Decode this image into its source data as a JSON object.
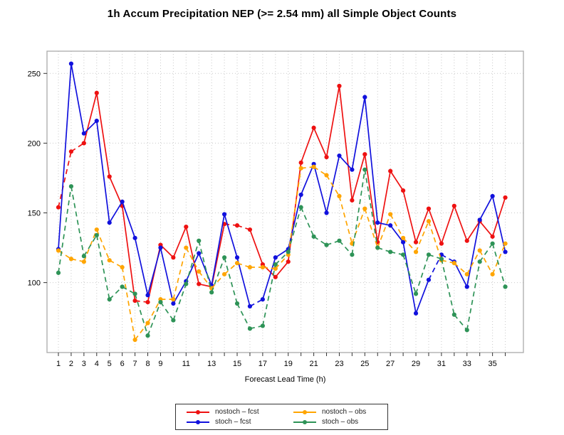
{
  "title": "1h Accum Precipitation NEP (>= 2.54 mm) all Simple Object Counts",
  "chart_data": {
    "type": "line",
    "title": "1h Accum Precipitation NEP (>= 2.54 mm) all Simple Object Counts",
    "xlabel": "Forecast Lead Time (h)",
    "ylabel": "",
    "x": [
      1,
      2,
      3,
      4,
      5,
      6,
      7,
      8,
      9,
      10,
      11,
      12,
      13,
      14,
      15,
      16,
      17,
      18,
      19,
      20,
      21,
      22,
      23,
      24,
      25,
      26,
      27,
      28,
      29,
      30,
      31,
      32,
      33,
      34,
      35,
      36
    ],
    "x_labeled_ticks": [
      1,
      2,
      3,
      4,
      5,
      6,
      7,
      8,
      9,
      11,
      13,
      15,
      17,
      19,
      21,
      23,
      25,
      27,
      29,
      31,
      33,
      35
    ],
    "y_ticks": [
      100,
      150,
      200,
      250
    ],
    "ylim": [
      50,
      266
    ],
    "xlim": [
      0.1,
      37.4
    ],
    "grid": "dotted, both axes, every hour and every 50 units",
    "legend_position": "bottom-center",
    "series": [
      {
        "name": "nostoch – fcst",
        "color": "#EE1111",
        "style": "solid",
        "dashed_segments": [
          [
            1,
            3
          ],
          [
            7,
            8
          ],
          [
            14,
            16
          ]
        ],
        "values": [
          154,
          194,
          200,
          236,
          176,
          155,
          87,
          86,
          127,
          118,
          140,
          99,
          97,
          142,
          141,
          138,
          113,
          104,
          115,
          186,
          211,
          190,
          241,
          159,
          192,
          129,
          180,
          166,
          129,
          153,
          128,
          155,
          130,
          144,
          133,
          161
        ]
      },
      {
        "name": "stoch – fcst",
        "color": "#1111DD",
        "style": "solid",
        "dashed_segments": [
          [
            16,
            17
          ],
          [
            30,
            32
          ]
        ],
        "values": [
          124,
          257,
          207,
          216,
          143,
          158,
          132,
          91,
          125,
          85,
          101,
          121,
          98,
          149,
          118,
          83,
          88,
          118,
          124,
          163,
          185,
          150,
          191,
          181,
          233,
          143,
          141,
          129,
          78,
          102,
          120,
          115,
          97,
          145,
          162,
          122
        ]
      },
      {
        "name": "nostoch – obs",
        "color": "#FFA500",
        "style": "dashed",
        "dashed_segments": [],
        "values": [
          123,
          117,
          115,
          138,
          116,
          111,
          59,
          71,
          88,
          88,
          125,
          108,
          96,
          106,
          114,
          111,
          111,
          110,
          120,
          182,
          183,
          177,
          162,
          128,
          153,
          125,
          149,
          132,
          122,
          144,
          116,
          114,
          106,
          123,
          106,
          128
        ]
      },
      {
        "name": "stoch – obs",
        "color": "#2E9357",
        "style": "dashed",
        "dashed_segments": [],
        "values": [
          107,
          169,
          119,
          134,
          88,
          97,
          92,
          62,
          86,
          73,
          99,
          130,
          93,
          118,
          85,
          67,
          69,
          113,
          122,
          154,
          133,
          127,
          130,
          120,
          181,
          125,
          122,
          120,
          92,
          120,
          117,
          77,
          66,
          115,
          128,
          97
        ]
      }
    ]
  },
  "legend": {
    "entries": [
      {
        "label": "nostoch – fcst",
        "color": "#EE1111"
      },
      {
        "label": "nostoch – obs",
        "color": "#FFA500"
      },
      {
        "label": "stoch – fcst",
        "color": "#1111DD"
      },
      {
        "label": "stoch – obs",
        "color": "#2E9357"
      }
    ]
  },
  "colors": {
    "background": "#FFFFFF",
    "grid": "#C9C9C9",
    "plot_border": "#AAAAAA",
    "tick": "#333333",
    "text": "#000000"
  }
}
